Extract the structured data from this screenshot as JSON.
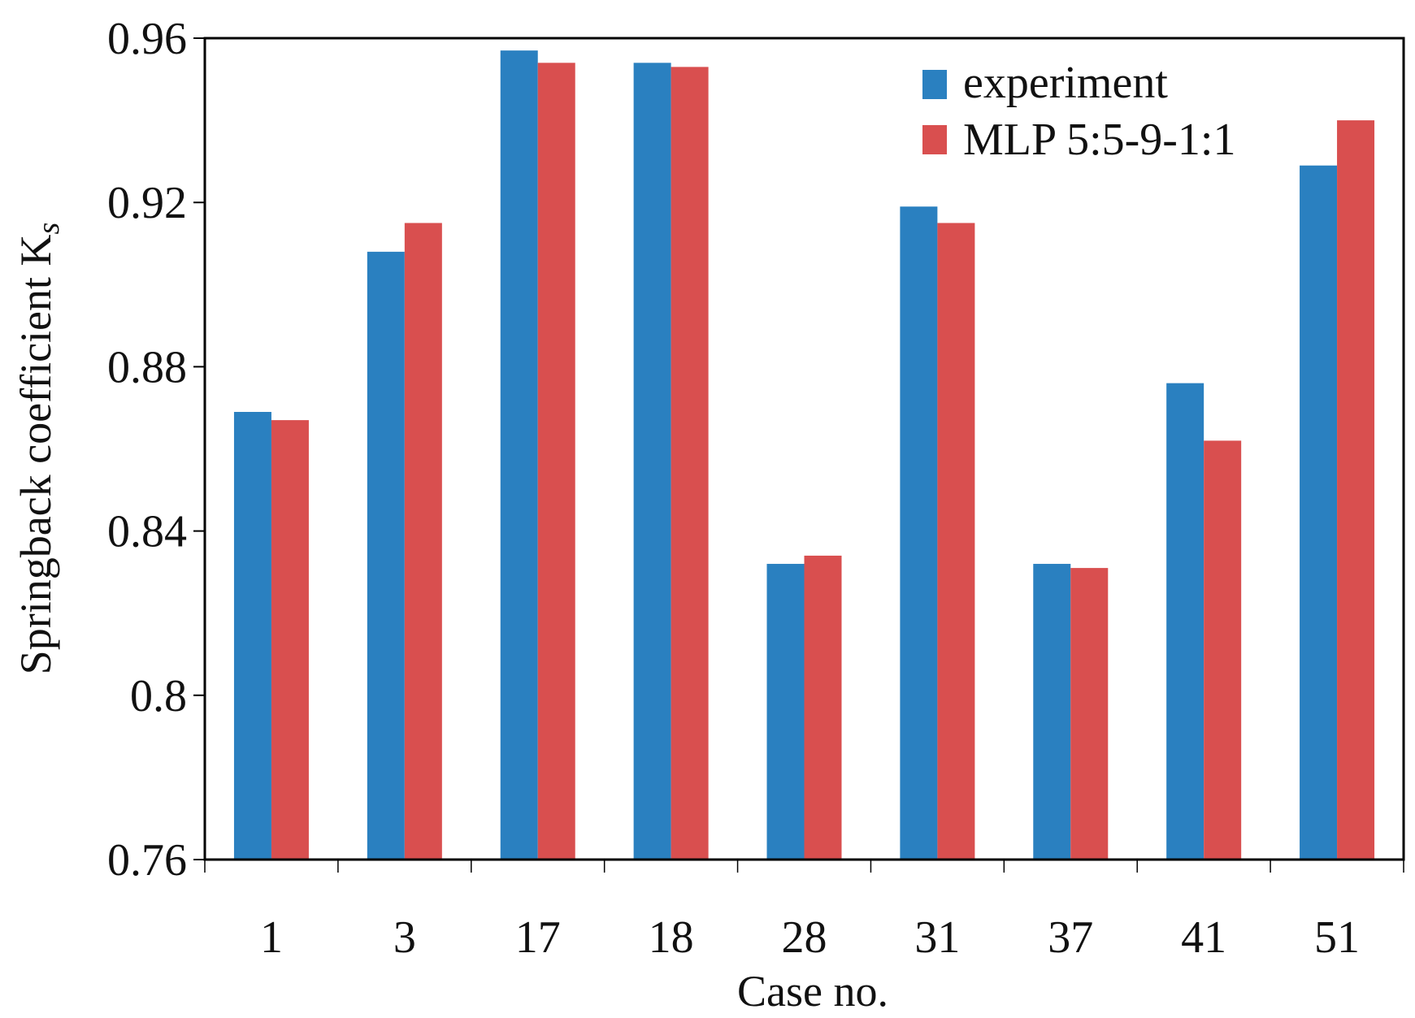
{
  "chart_data": {
    "type": "bar",
    "title": "",
    "xlabel": "Case no.",
    "ylabel": "Springback coefficient K",
    "ylabel_subscript": "s",
    "categories": [
      "1",
      "3",
      "17",
      "18",
      "28",
      "31",
      "37",
      "41",
      "51"
    ],
    "series": [
      {
        "name": "experiment",
        "color": "#2a80c0",
        "values": [
          0.869,
          0.908,
          0.957,
          0.954,
          0.832,
          0.919,
          0.832,
          0.876,
          0.929
        ]
      },
      {
        "name": "MLP 5:5-9-1:1",
        "color": "#d94f4f",
        "values": [
          0.867,
          0.915,
          0.954,
          0.953,
          0.834,
          0.915,
          0.831,
          0.862,
          0.94
        ]
      }
    ],
    "ylim": [
      0.76,
      0.96
    ],
    "yticks": [
      "0.76",
      "0.8",
      "0.84",
      "0.88",
      "0.92",
      "0.96"
    ],
    "grid": false,
    "legend_position": "top-right"
  }
}
